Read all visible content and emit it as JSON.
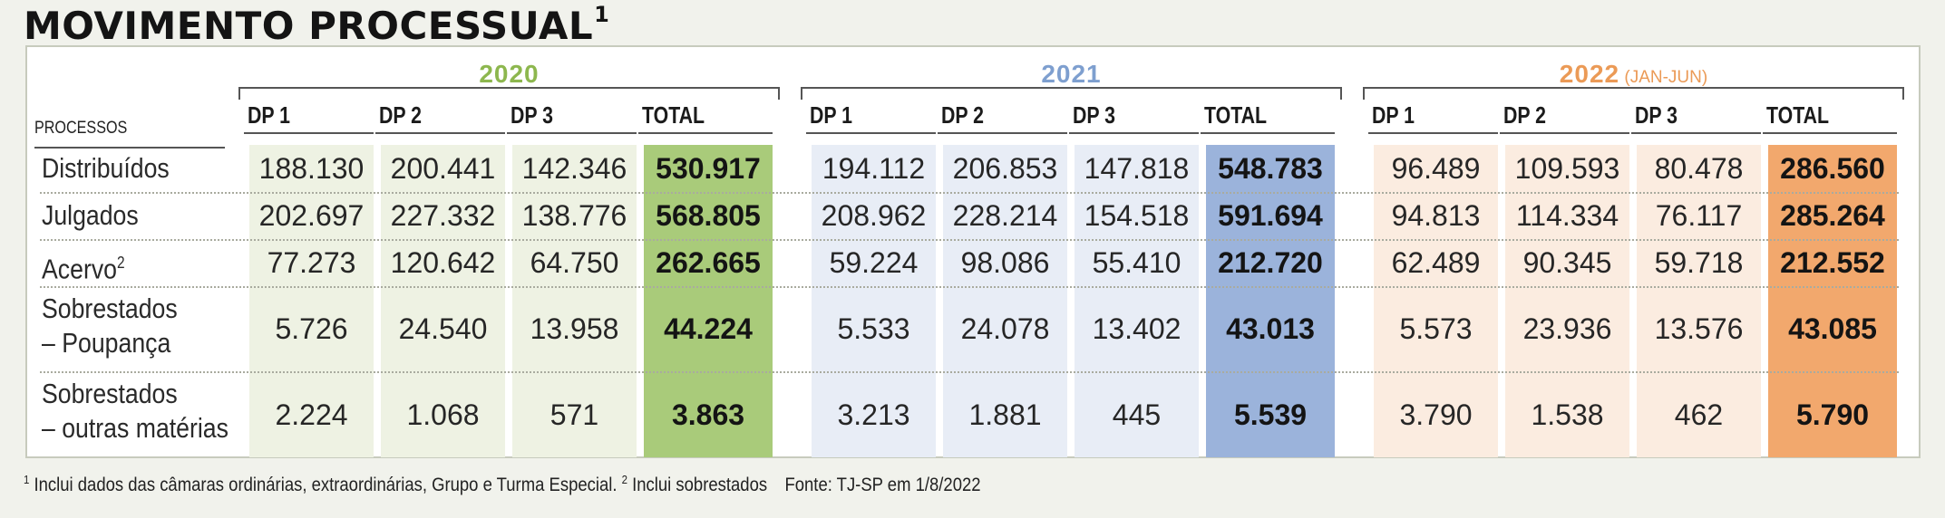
{
  "title": "MOVIMENTO PROCESSUAL",
  "title_sup": "1",
  "processos_label": "PROCESSOS",
  "groups": [
    {
      "year": "2020",
      "sub": "",
      "color": "#8db74e",
      "light": "#eef2e3",
      "dark": "#a9cb7a",
      "cols": [
        "DP 1",
        "DP 2",
        "DP 3",
        "TOTAL"
      ]
    },
    {
      "year": "2021",
      "sub": "",
      "color": "#7e9fcf",
      "light": "#e8edf6",
      "dark": "#9bb3db",
      "cols": [
        "DP 1",
        "DP 2",
        "DP 3",
        "TOTAL"
      ]
    },
    {
      "year": "2022",
      "sub": "(JAN-JUN)",
      "color": "#eb9a56",
      "light": "#fbece0",
      "dark": "#f2a86d",
      "cols": [
        "DP 1",
        "DP 2",
        "DP 3",
        "TOTAL"
      ]
    }
  ],
  "rows": [
    {
      "label": "Distribuídos",
      "sup": "",
      "label2": "",
      "values": [
        "188.130",
        "200.441",
        "142.346",
        "530.917",
        "194.112",
        "206.853",
        "147.818",
        "548.783",
        "96.489",
        "109.593",
        "80.478",
        "286.560"
      ]
    },
    {
      "label": "Julgados",
      "sup": "",
      "label2": "",
      "values": [
        "202.697",
        "227.332",
        "138.776",
        "568.805",
        "208.962",
        "228.214",
        "154.518",
        "591.694",
        "94.813",
        "114.334",
        "76.117",
        "285.264"
      ]
    },
    {
      "label": "Acervo",
      "sup": "2",
      "label2": "",
      "values": [
        "77.273",
        "120.642",
        "64.750",
        "262.665",
        "59.224",
        "98.086",
        "55.410",
        "212.720",
        "62.489",
        "90.345",
        "59.718",
        "212.552"
      ]
    },
    {
      "label": "Sobrestados",
      "sup": "",
      "label2": "– Poupança",
      "values": [
        "5.726",
        "24.540",
        "13.958",
        "44.224",
        "5.533",
        "24.078",
        "13.402",
        "43.013",
        "5.573",
        "23.936",
        "13.576",
        "43.085"
      ]
    },
    {
      "label": "Sobrestados",
      "sup": "",
      "label2": "– outras matérias",
      "values": [
        "2.224",
        "1.068",
        "571",
        "3.863",
        "3.213",
        "1.881",
        "445",
        "5.539",
        "3.790",
        "1.538",
        "462",
        "5.790"
      ]
    }
  ],
  "footnote": {
    "sup1": "1",
    "text1": " Inclui dados das câmaras ordinárias, extraordinárias, Grupo e Turma Especial. ",
    "sup2": "2",
    "text2": " Inclui sobrestados",
    "source": "Fonte: TJ-SP em 1/8/2022"
  }
}
